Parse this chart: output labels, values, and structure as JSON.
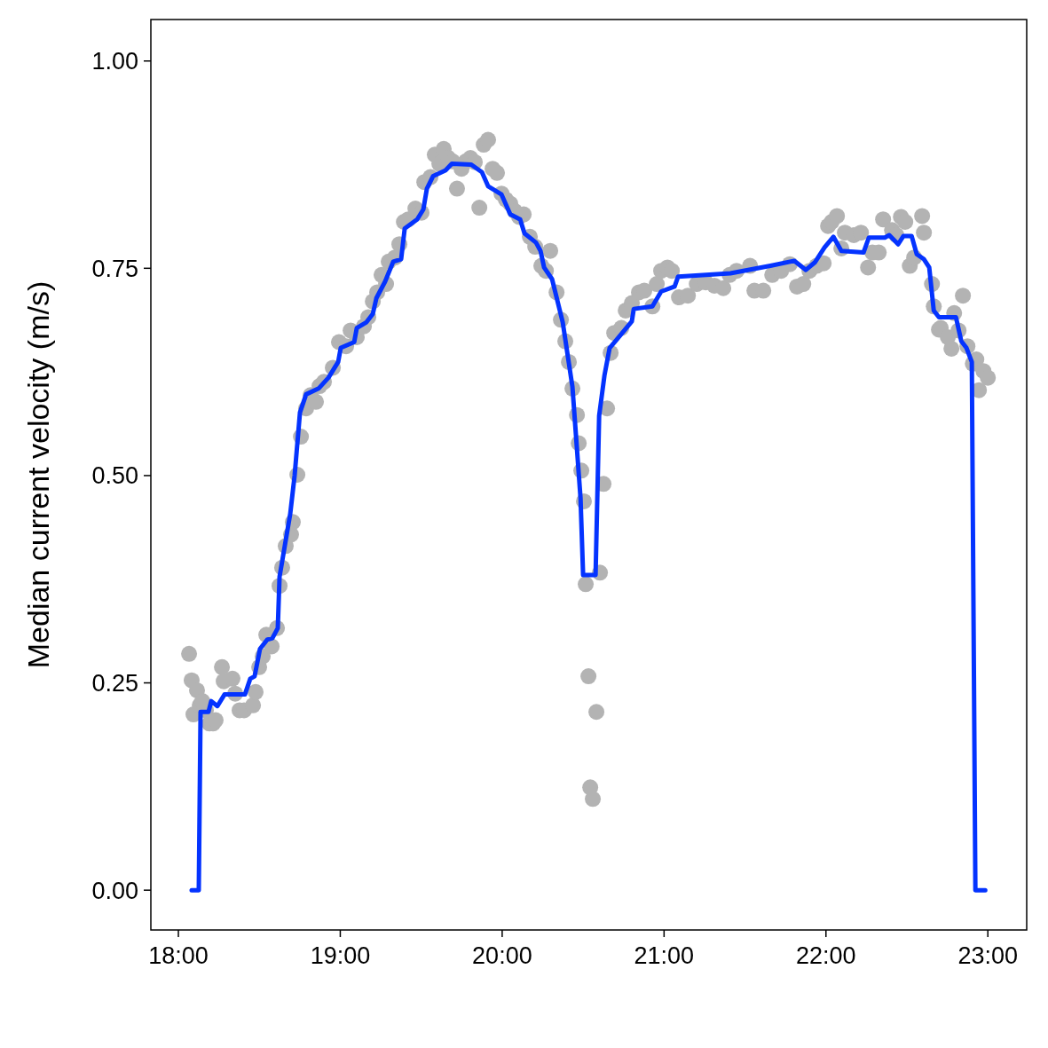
{
  "chart_data": {
    "type": "line",
    "ylabel": "Median current velocity (m/s)",
    "xlim": [
      17.83,
      23.24
    ],
    "ylim": [
      -0.048,
      1.05
    ],
    "xticks": [
      {
        "value": 18,
        "label": "18:00"
      },
      {
        "value": 19,
        "label": "19:00"
      },
      {
        "value": 20,
        "label": "20:00"
      },
      {
        "value": 21,
        "label": "21:00"
      },
      {
        "value": 22,
        "label": "22:00"
      },
      {
        "value": 23,
        "label": "23:00"
      }
    ],
    "yticks": [
      {
        "value": 0,
        "label": "0.00"
      },
      {
        "value": 0.25,
        "label": "0.25"
      },
      {
        "value": 0.5,
        "label": "0.50"
      },
      {
        "value": 0.75,
        "label": "0.75"
      },
      {
        "value": 1,
        "label": "1.00"
      }
    ],
    "grid": false,
    "series": [
      {
        "type": "scatter",
        "marker": "circle",
        "color": "#b3b3b3",
        "x": [
          18.066,
          18.082,
          18.093,
          18.115,
          18.132,
          18.148,
          18.17,
          18.192,
          18.214,
          18.23,
          18.269,
          18.28,
          18.334,
          18.351,
          18.378,
          18.406,
          18.461,
          18.477,
          18.499,
          18.521,
          18.543,
          18.576,
          18.609,
          18.625,
          18.641,
          18.663,
          18.696,
          18.707,
          18.735,
          18.757,
          18.789,
          18.817,
          18.85,
          18.872,
          18.899,
          18.954,
          18.992,
          19.036,
          19.064,
          19.102,
          19.146,
          19.173,
          19.201,
          19.228,
          19.255,
          19.283,
          19.299,
          19.338,
          19.365,
          19.393,
          19.42,
          19.464,
          19.502,
          19.519,
          19.557,
          19.584,
          19.612,
          19.639,
          19.667,
          19.694,
          19.721,
          19.749,
          19.776,
          19.804,
          19.831,
          19.859,
          19.886,
          19.913,
          19.941,
          19.968,
          19.996,
          20.023,
          20.05,
          20.078,
          20.105,
          20.133,
          20.171,
          20.204,
          20.242,
          20.27,
          20.297,
          20.336,
          20.363,
          20.39,
          20.412,
          20.434,
          20.462,
          20.473,
          20.489,
          20.505,
          20.516,
          20.533,
          20.544,
          20.56,
          20.582,
          20.604,
          20.626,
          20.648,
          20.67,
          20.692,
          20.736,
          20.763,
          20.801,
          20.845,
          20.878,
          20.928,
          20.955,
          20.982,
          21.021,
          21.048,
          21.092,
          21.147,
          21.202,
          21.257,
          21.311,
          21.366,
          21.405,
          21.448,
          21.531,
          21.558,
          21.613,
          21.668,
          21.723,
          21.777,
          21.821,
          21.86,
          21.898,
          21.942,
          21.986,
          22.013,
          22.035,
          22.068,
          22.095,
          22.117,
          22.172,
          22.216,
          22.26,
          22.287,
          22.326,
          22.353,
          22.408,
          22.435,
          22.463,
          22.49,
          22.518,
          22.545,
          22.594,
          22.605,
          22.655,
          22.666,
          22.698,
          22.709,
          22.753,
          22.775,
          22.792,
          22.819,
          22.846,
          22.874,
          22.907,
          22.929,
          22.945,
          22.973,
          23.0
        ],
        "values": [
          0.285,
          0.253,
          0.212,
          0.241,
          0.223,
          0.228,
          0.217,
          0.201,
          0.201,
          0.205,
          0.269,
          0.252,
          0.255,
          0.237,
          0.217,
          0.217,
          0.223,
          0.239,
          0.269,
          0.282,
          0.308,
          0.294,
          0.316,
          0.367,
          0.389,
          0.415,
          0.429,
          0.444,
          0.501,
          0.547,
          0.581,
          0.597,
          0.589,
          0.608,
          0.613,
          0.63,
          0.661,
          0.656,
          0.675,
          0.667,
          0.68,
          0.691,
          0.71,
          0.721,
          0.742,
          0.731,
          0.758,
          0.763,
          0.779,
          0.806,
          0.809,
          0.822,
          0.817,
          0.854,
          0.86,
          0.887,
          0.876,
          0.894,
          0.883,
          0.879,
          0.846,
          0.87,
          0.879,
          0.883,
          0.878,
          0.823,
          0.899,
          0.905,
          0.87,
          0.865,
          0.84,
          0.833,
          0.828,
          0.819,
          0.812,
          0.815,
          0.788,
          0.776,
          0.753,
          0.747,
          0.771,
          0.721,
          0.688,
          0.662,
          0.637,
          0.605,
          0.573,
          0.539,
          0.506,
          0.469,
          0.369,
          0.258,
          0.124,
          0.11,
          0.215,
          0.383,
          0.49,
          0.581,
          0.648,
          0.672,
          0.678,
          0.699,
          0.708,
          0.721,
          0.723,
          0.704,
          0.731,
          0.747,
          0.751,
          0.747,
          0.715,
          0.717,
          0.731,
          0.733,
          0.729,
          0.726,
          0.742,
          0.747,
          0.753,
          0.723,
          0.723,
          0.742,
          0.747,
          0.755,
          0.728,
          0.731,
          0.747,
          0.753,
          0.756,
          0.801,
          0.806,
          0.813,
          0.774,
          0.793,
          0.79,
          0.793,
          0.751,
          0.769,
          0.769,
          0.809,
          0.796,
          0.79,
          0.812,
          0.806,
          0.753,
          0.763,
          0.813,
          0.793,
          0.731,
          0.704,
          0.676,
          0.678,
          0.667,
          0.653,
          0.696,
          0.675,
          0.717,
          0.656,
          0.635,
          0.64,
          0.603,
          0.626,
          0.618
        ]
      },
      {
        "marker": "none",
        "line_style": "solid",
        "color": "#0433ff",
        "x": [
          18.082,
          18.126,
          18.137,
          18.186,
          18.203,
          18.241,
          18.285,
          18.411,
          18.444,
          18.471,
          18.504,
          18.548,
          18.581,
          18.614,
          18.625,
          18.691,
          18.718,
          18.751,
          18.789,
          18.866,
          18.927,
          18.987,
          19.003,
          19.086,
          19.102,
          19.162,
          19.201,
          19.223,
          19.277,
          19.327,
          19.376,
          19.398,
          19.475,
          19.513,
          19.535,
          19.573,
          19.65,
          19.689,
          19.809,
          19.875,
          19.913,
          19.996,
          20.05,
          20.111,
          20.138,
          20.209,
          20.237,
          20.259,
          20.308,
          20.374,
          20.434,
          20.484,
          20.5,
          20.577,
          20.599,
          20.632,
          20.664,
          20.708,
          20.801,
          20.813,
          20.928,
          20.982,
          21.065,
          21.087,
          21.41,
          21.657,
          21.805,
          21.876,
          21.931,
          21.991,
          22.046,
          22.095,
          22.232,
          22.265,
          22.364,
          22.391,
          22.446,
          22.479,
          22.529,
          22.561,
          22.605,
          22.638,
          22.666,
          22.698,
          22.803,
          22.836,
          22.868,
          22.901,
          22.923,
          22.984
        ],
        "values": [
          0,
          0,
          0.215,
          0.215,
          0.228,
          0.222,
          0.236,
          0.236,
          0.255,
          0.258,
          0.291,
          0.302,
          0.304,
          0.316,
          0.378,
          0.454,
          0.5,
          0.576,
          0.598,
          0.605,
          0.618,
          0.637,
          0.654,
          0.661,
          0.678,
          0.685,
          0.695,
          0.714,
          0.734,
          0.758,
          0.761,
          0.798,
          0.809,
          0.821,
          0.846,
          0.861,
          0.868,
          0.876,
          0.875,
          0.866,
          0.849,
          0.839,
          0.815,
          0.809,
          0.792,
          0.781,
          0.771,
          0.751,
          0.737,
          0.685,
          0.607,
          0.473,
          0.38,
          0.38,
          0.572,
          0.621,
          0.654,
          0.664,
          0.686,
          0.701,
          0.704,
          0.722,
          0.728,
          0.74,
          0.744,
          0.753,
          0.759,
          0.748,
          0.757,
          0.775,
          0.788,
          0.771,
          0.769,
          0.787,
          0.787,
          0.79,
          0.779,
          0.789,
          0.789,
          0.767,
          0.761,
          0.751,
          0.699,
          0.691,
          0.691,
          0.662,
          0.654,
          0.637,
          0,
          0
        ]
      }
    ]
  }
}
